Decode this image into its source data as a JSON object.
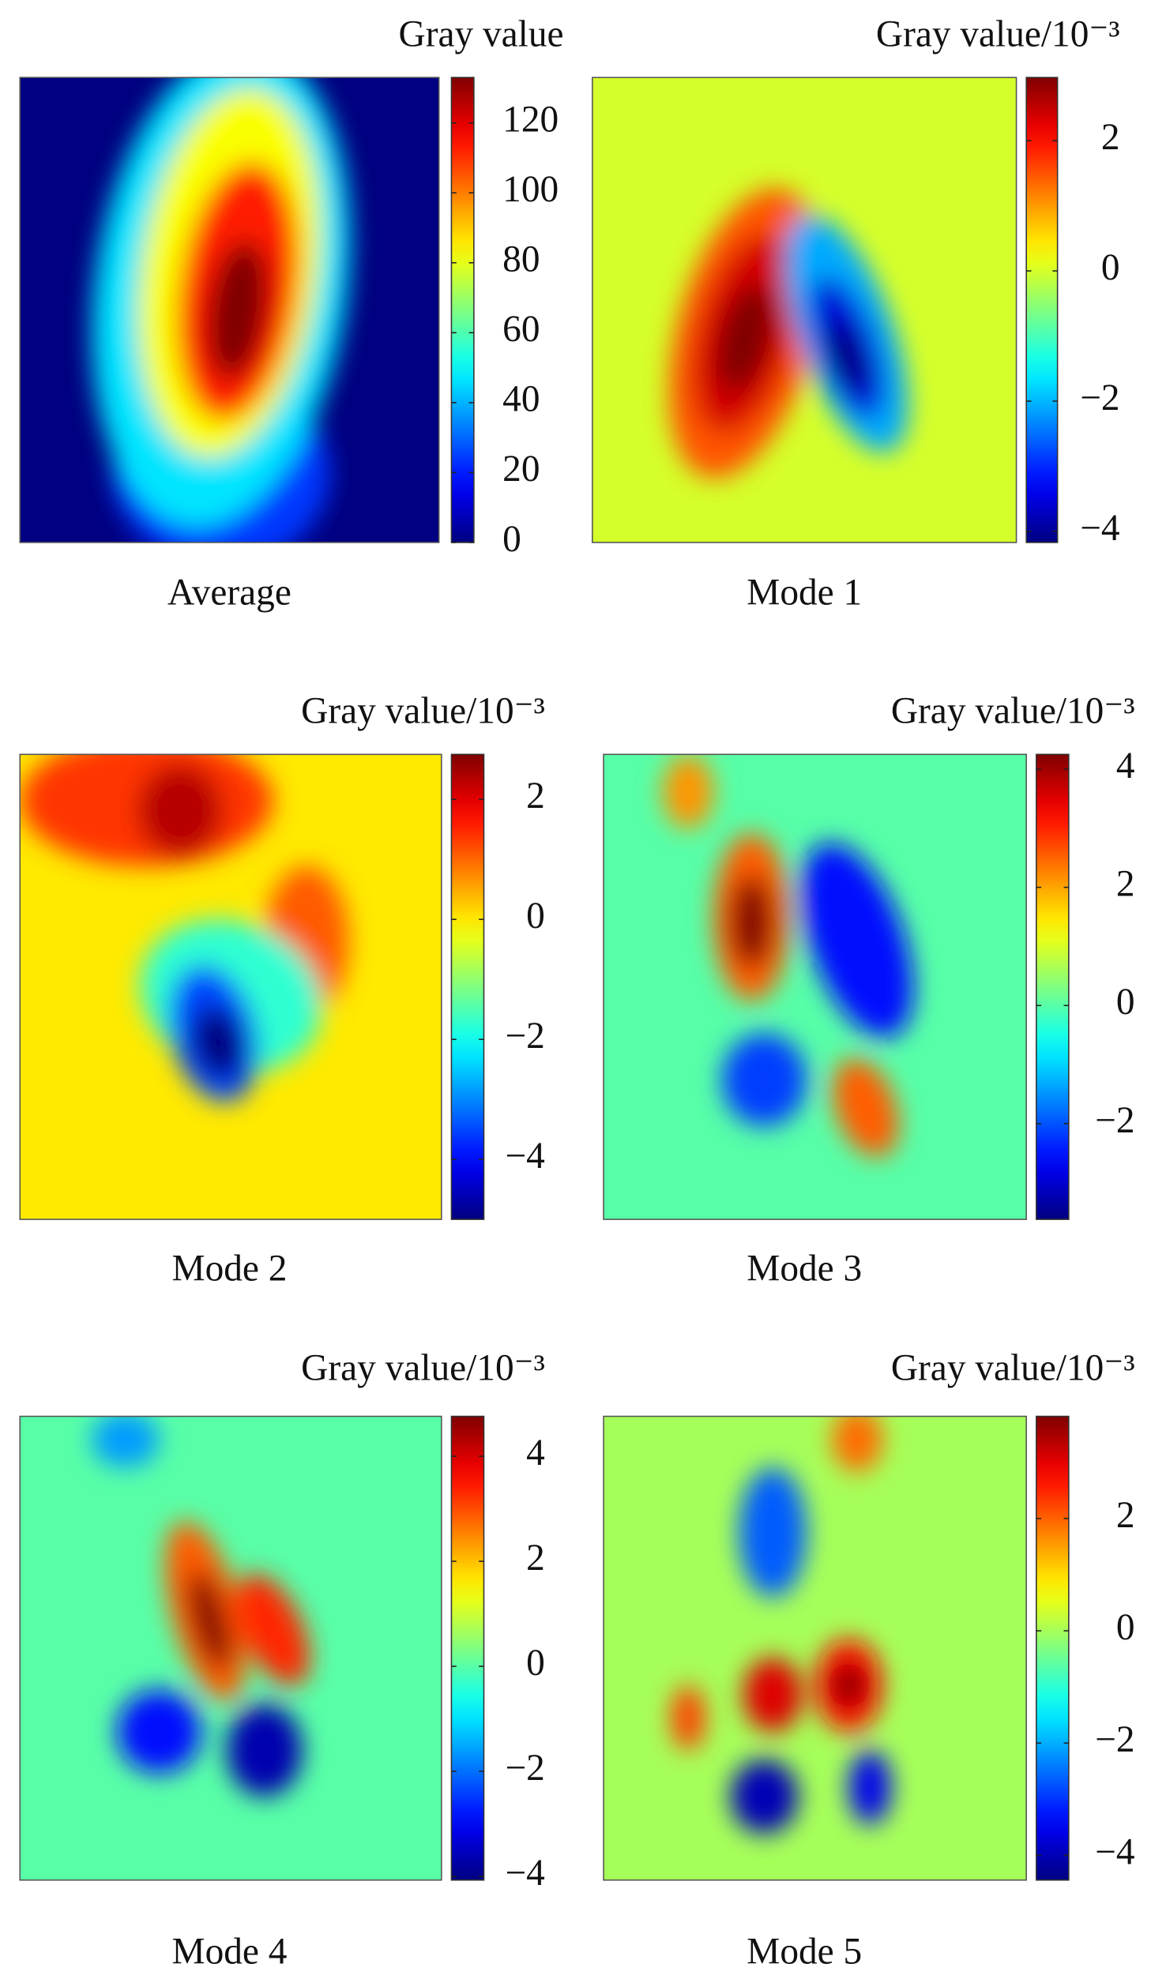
{
  "chart_data": [
    {
      "type": "heatmap",
      "caption": "Average",
      "colorbar_label": "Gray value",
      "clim": [
        0,
        133
      ],
      "cticks": [
        0,
        20,
        40,
        60,
        80,
        100,
        120
      ]
    },
    {
      "type": "heatmap",
      "caption": "Mode 1",
      "colorbar_label": "Gray value/10⁻³",
      "clim": [
        -4.17,
        2.97
      ],
      "cticks": [
        {
          "value": -4,
          "label": "−4"
        },
        {
          "value": -2,
          "label": "−2"
        },
        0,
        2
      ]
    },
    {
      "type": "heatmap",
      "caption": "Mode 2",
      "colorbar_label": "Gray value/10⁻³",
      "clim": [
        -5.0,
        2.75
      ],
      "cticks": [
        {
          "value": -4,
          "label": "−4"
        },
        {
          "value": -2,
          "label": "−2"
        },
        0,
        2
      ]
    },
    {
      "type": "heatmap",
      "caption": "Mode 3",
      "colorbar_label": "Gray value/10⁻³",
      "clim": [
        -3.62,
        4.25
      ],
      "cticks": [
        {
          "value": -2,
          "label": "−2"
        },
        0,
        2,
        4
      ]
    },
    {
      "type": "heatmap",
      "caption": "Mode 4",
      "colorbar_label": "Gray value/10⁻³",
      "clim": [
        -4.07,
        4.76
      ],
      "cticks": [
        {
          "value": -4,
          "label": "−4"
        },
        {
          "value": -2,
          "label": "−2"
        },
        0,
        2,
        4
      ]
    },
    {
      "type": "heatmap",
      "caption": "Mode 5",
      "colorbar_label": "Gray value/10⁻³",
      "clim": [
        -4.44,
        3.82
      ],
      "cticks": [
        {
          "value": -4,
          "label": "−4"
        },
        {
          "value": -2,
          "label": "−2"
        },
        0,
        2
      ]
    }
  ]
}
